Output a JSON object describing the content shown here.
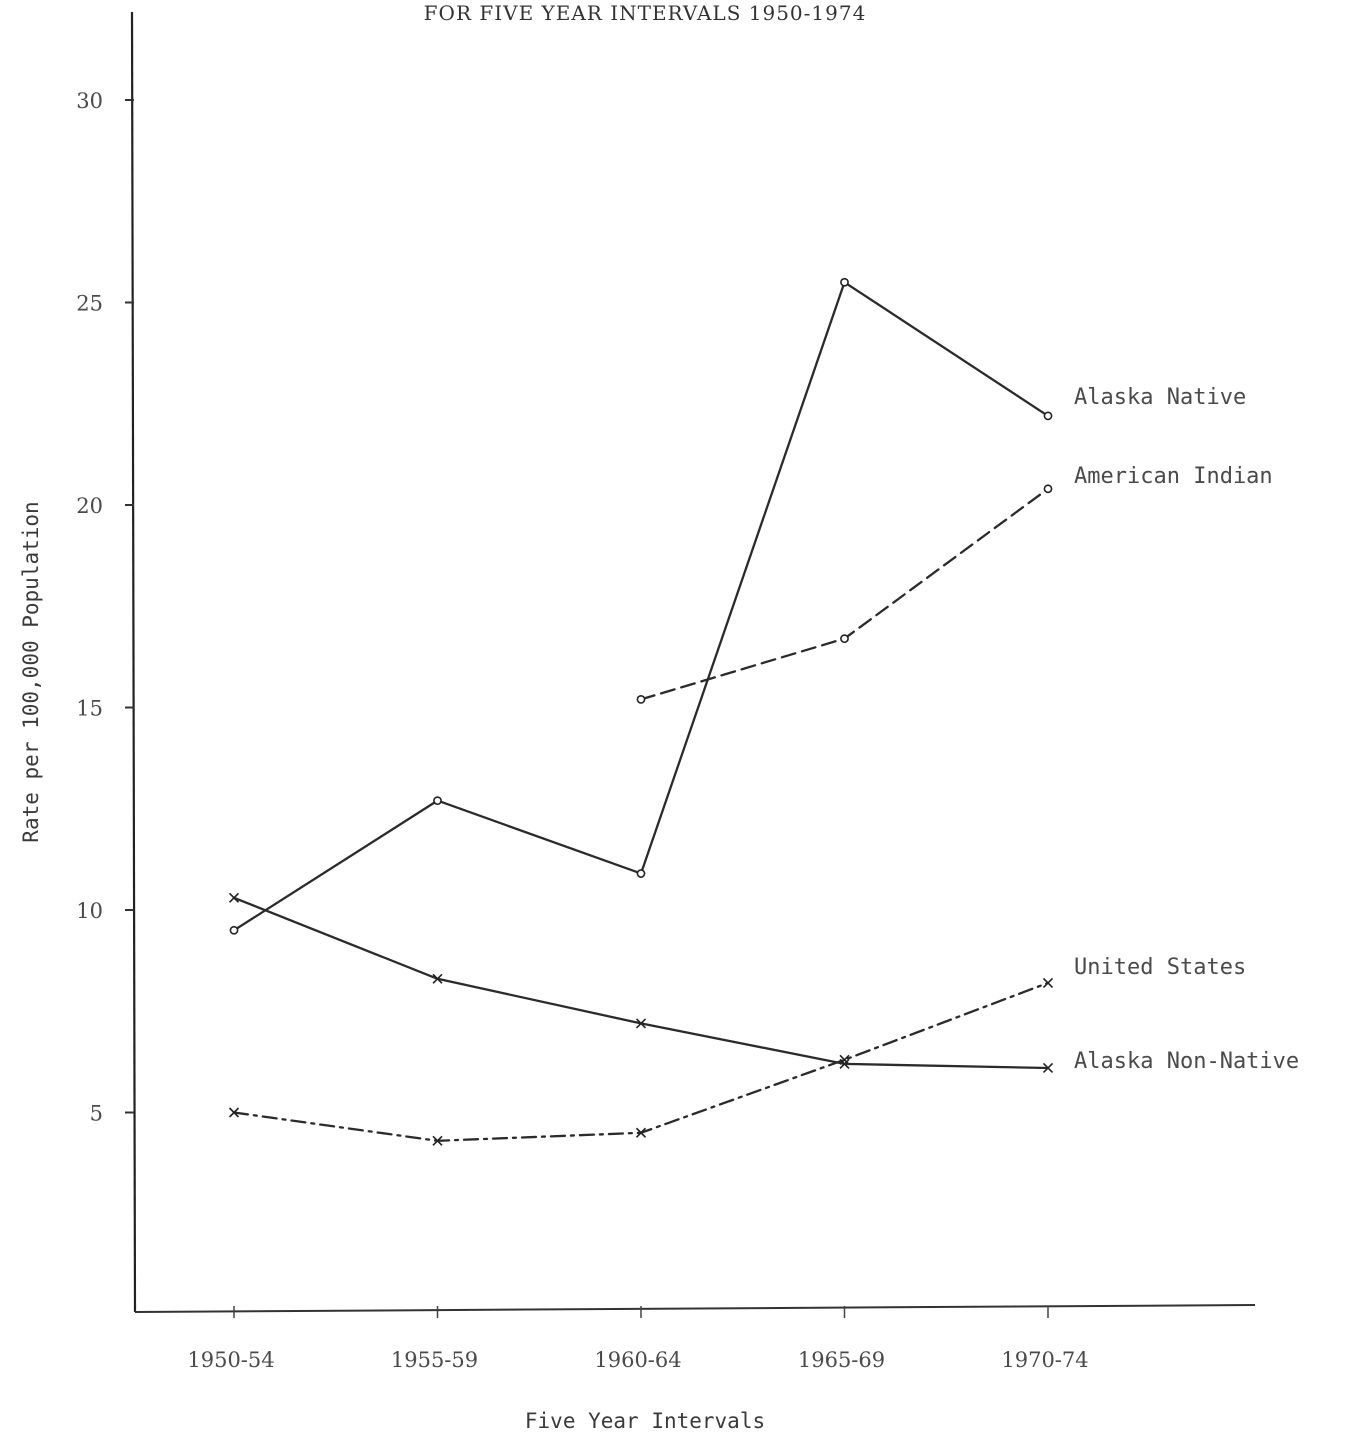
{
  "chart_data": {
    "type": "line",
    "title": "FOR FIVE YEAR INTERVALS 1950-1974",
    "xlabel": "Five Year Intervals",
    "ylabel": "Rate per 100,000 Population",
    "categories": [
      "1950-54",
      "1955-59",
      "1960-64",
      "1965-69",
      "1970-74"
    ],
    "yticks": [
      "5",
      "10",
      "15",
      "20",
      "25",
      "30"
    ],
    "ylim": [
      0,
      31
    ],
    "grid": false,
    "series": [
      {
        "name": "Alaska Native",
        "values": [
          9.5,
          12.7,
          10.9,
          25.5,
          22.2
        ],
        "line": "solid",
        "marker": "circle"
      },
      {
        "name": "American Indian",
        "values": [
          null,
          null,
          15.2,
          16.7,
          20.4
        ],
        "line": "dashed",
        "marker": "circle"
      },
      {
        "name": "United States",
        "values": [
          5.0,
          4.3,
          4.5,
          6.3,
          8.2
        ],
        "line": "dash-dot",
        "marker": "x"
      },
      {
        "name": "Alaska Non-Native",
        "values": [
          10.3,
          8.3,
          7.2,
          6.2,
          6.1
        ],
        "line": "solid",
        "marker": "x"
      }
    ]
  }
}
